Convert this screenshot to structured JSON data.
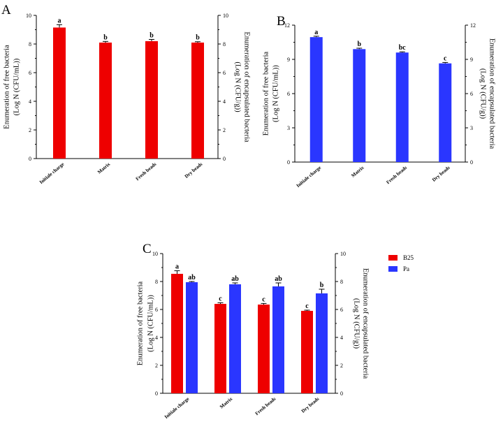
{
  "chart_data": [
    {
      "panel": "A",
      "type": "bar",
      "categories": [
        "Initiale charge",
        "Matrix",
        "Fresh beads",
        "Dry beads"
      ],
      "series": [
        {
          "values": [
            9.15,
            8.1,
            8.2,
            8.1
          ],
          "errors": [
            0.2,
            0.08,
            0.12,
            0.06
          ],
          "letters": [
            "a",
            "b",
            "b",
            "b"
          ],
          "color": "#ee0000"
        }
      ],
      "ylabel": [
        "Enumeration of free bacteria",
        "(Log N (CFU/mL))"
      ],
      "ylabel_right": [
        "Enumeration of encapsulated bacteria",
        "(Log N (CFU/g))"
      ],
      "ylim": [
        0,
        10
      ],
      "yticks": [
        0,
        2,
        4,
        6,
        8,
        10
      ]
    },
    {
      "panel": "B",
      "type": "bar",
      "categories": [
        "Initiale charge",
        "Matrix",
        "Fresh beads",
        "Dry beads"
      ],
      "series": [
        {
          "values": [
            10.95,
            9.9,
            9.6,
            8.65
          ],
          "errors": [
            0.08,
            0.08,
            0.06,
            0.08
          ],
          "letters": [
            "a",
            "b",
            "bc",
            "c"
          ],
          "color": "#2a36ff"
        }
      ],
      "ylabel": [
        "Enumeration of free bacteria",
        "(Log N (CFU/mL))"
      ],
      "ylabel_right": [
        "Enumeration of encapsulated bacteria",
        "(Log N (CFU/g))"
      ],
      "ylim": [
        0,
        12
      ],
      "yticks": [
        0,
        3,
        6,
        9,
        12
      ]
    },
    {
      "panel": "C",
      "type": "bar",
      "categories": [
        "Initiale charge",
        "Matrix",
        "Fresh beads",
        "Dry beads"
      ],
      "series": [
        {
          "name": "B25",
          "values": [
            8.55,
            6.4,
            6.35,
            5.9
          ],
          "errors": [
            0.22,
            0.08,
            0.08,
            0.05
          ],
          "letters": [
            "a",
            "c",
            "c",
            "c"
          ],
          "color": "#ee0000"
        },
        {
          "name": "Pa",
          "values": [
            7.95,
            7.8,
            7.65,
            7.15
          ],
          "errors": [
            0.05,
            0.1,
            0.25,
            0.3
          ],
          "letters": [
            "ab",
            "ab",
            "ab",
            "b"
          ],
          "color": "#2a36ff"
        }
      ],
      "ylabel": [
        "Enumeration of free bacteria",
        "(Log N (CFU/mL))"
      ],
      "ylabel_right": [
        "Enumeration of encapsulated bacteria",
        "(Log N (CFU/g))"
      ],
      "ylim": [
        0,
        10
      ],
      "yticks": [
        0,
        2,
        4,
        6,
        8,
        10
      ],
      "legend": "right"
    }
  ]
}
